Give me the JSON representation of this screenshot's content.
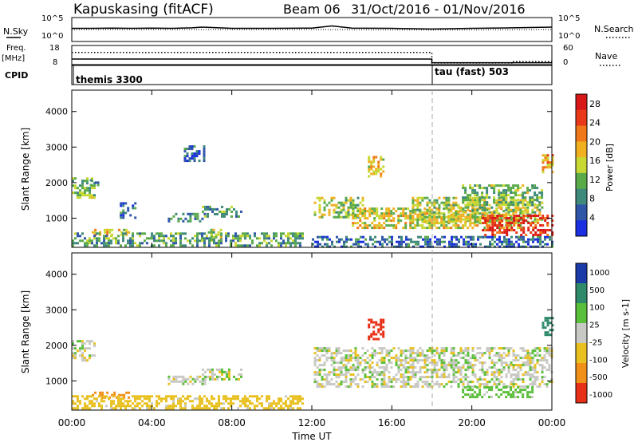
{
  "header": {
    "station": "Kapuskasing (fitACF)",
    "beam": "Beam 06",
    "dates": "31/Oct/2016 - 01/Nov/2016"
  },
  "left_labels": {
    "nsky": "N.Sky",
    "freq": "Freq.",
    "mhz": "[MHz]",
    "cpid": "CPID"
  },
  "right_labels": {
    "nsearch": "N.Search",
    "nave": "Nave"
  },
  "cpid_labels": [
    "themis 3300",
    "tau (fast) 503"
  ],
  "chart_data": [
    {
      "type": "line",
      "panel": "noise",
      "y_ticks_left": [
        "10^5",
        "10^0"
      ],
      "y_ticks_right": [
        "10^5",
        "10^0"
      ],
      "series": [
        {
          "name": "N.Sky",
          "x": [
            0,
            1,
            2,
            3,
            4,
            5,
            6,
            6.5,
            8,
            10,
            12,
            13,
            14,
            16,
            18,
            20,
            22,
            24
          ],
          "values": [
            0.55,
            0.55,
            0.56,
            0.55,
            0.56,
            0.55,
            0.57,
            0.6,
            0.55,
            0.55,
            0.56,
            0.65,
            0.56,
            0.55,
            0.52,
            0.55,
            0.57,
            0.6
          ]
        },
        {
          "name": "N.Search",
          "x": [
            0,
            6,
            12,
            18,
            24
          ],
          "values": [
            0.5,
            0.5,
            0.5,
            0.48,
            0.5
          ]
        }
      ]
    },
    {
      "type": "line",
      "panel": "frequency",
      "y_ticks_left": [
        "18",
        "8"
      ],
      "y_ticks_right": [
        "60",
        "0"
      ],
      "series": [
        {
          "name": "Freq.",
          "x": [
            0,
            18,
            18,
            24
          ],
          "values": [
            10.5,
            10.5,
            8.2,
            8.2
          ]
        },
        {
          "name": "Nave",
          "x": [
            0,
            18,
            18,
            22,
            22,
            24
          ],
          "values": [
            40,
            40,
            0,
            0,
            5,
            5
          ]
        }
      ]
    },
    {
      "type": "heatmap",
      "panel": "power",
      "xlabel": "",
      "ylabel": "Slant Range [km]",
      "x_ticks": [
        "00:00",
        "04:00",
        "08:00",
        "12:00",
        "16:00",
        "20:00",
        "00:00"
      ],
      "y_ticks": [
        "1000",
        "2000",
        "3000",
        "4000"
      ],
      "xlim": [
        0,
        24
      ],
      "ylim": [
        180,
        4600
      ],
      "colorbar": {
        "label": "Power [dB]",
        "ticks": [
          "4",
          "8",
          "12",
          "16",
          "20",
          "24",
          "28"
        ],
        "range": [
          0,
          30
        ]
      },
      "regions": [
        {
          "x": [
            0.0,
            1.1
          ],
          "y": [
            1600,
            2150
          ],
          "value": 12
        },
        {
          "x": [
            0.9,
            1.3
          ],
          "y": [
            1900,
            2100
          ],
          "value": 8
        },
        {
          "x": [
            1.0,
            2.8
          ],
          "y": [
            500,
            700
          ],
          "value": 18
        },
        {
          "x": [
            2.4,
            3.2
          ],
          "y": [
            1000,
            1450
          ],
          "value": 6
        },
        {
          "x": [
            0.0,
            11.5
          ],
          "y": [
            200,
            600
          ],
          "value": 10
        },
        {
          "x": [
            4.8,
            6.6
          ],
          "y": [
            900,
            1150
          ],
          "value": 8
        },
        {
          "x": [
            6.5,
            8.5
          ],
          "y": [
            1050,
            1350
          ],
          "value": 10
        },
        {
          "x": [
            5.6,
            6.6
          ],
          "y": [
            2600,
            3050
          ],
          "value": 6
        },
        {
          "x": [
            6.8,
            7.5
          ],
          "y": [
            400,
            700
          ],
          "value": 14
        },
        {
          "x": [
            12.0,
            24.0
          ],
          "y": [
            200,
            500
          ],
          "value": 6
        },
        {
          "x": [
            12.1,
            14.5
          ],
          "y": [
            1000,
            1600
          ],
          "value": 14
        },
        {
          "x": [
            14.0,
            22.5
          ],
          "y": [
            700,
            1300
          ],
          "value": 16
        },
        {
          "x": [
            17.0,
            23.5
          ],
          "y": [
            900,
            1600
          ],
          "value": 14
        },
        {
          "x": [
            19.5,
            23.5
          ],
          "y": [
            1400,
            1950
          ],
          "value": 12
        },
        {
          "x": [
            20.5,
            24.0
          ],
          "y": [
            500,
            1100
          ],
          "value": 26
        },
        {
          "x": [
            14.8,
            15.6
          ],
          "y": [
            2150,
            2750
          ],
          "value": 18
        },
        {
          "x": [
            23.5,
            24.0
          ],
          "y": [
            2300,
            2800
          ],
          "value": 20
        }
      ]
    },
    {
      "type": "heatmap",
      "panel": "velocity",
      "xlabel": "Time UT",
      "ylabel": "Slant Range [km]",
      "x_ticks": [
        "00:00",
        "04:00",
        "08:00",
        "12:00",
        "16:00",
        "20:00",
        "00:00"
      ],
      "y_ticks": [
        "1000",
        "2000",
        "3000",
        "4000"
      ],
      "xlim": [
        0,
        24
      ],
      "ylim": [
        180,
        4600
      ],
      "colorbar": {
        "label": "Velocity [m s-1]",
        "ticks": [
          "1000",
          "500",
          "100",
          "25",
          "-25",
          "-100",
          "-500",
          "-1000"
        ],
        "range": [
          -1000,
          1000
        ]
      },
      "regions": [
        {
          "x": [
            0.0,
            1.1
          ],
          "y": [
            1600,
            2150
          ],
          "value": 0
        },
        {
          "x": [
            1.0,
            2.8
          ],
          "y": [
            500,
            700
          ],
          "value": -300
        },
        {
          "x": [
            0.0,
            11.5
          ],
          "y": [
            200,
            600
          ],
          "value": -60
        },
        {
          "x": [
            4.8,
            6.6
          ],
          "y": [
            900,
            1150
          ],
          "value": 0
        },
        {
          "x": [
            6.5,
            8.5
          ],
          "y": [
            1050,
            1350
          ],
          "value": 0
        },
        {
          "x": [
            12.1,
            24.0
          ],
          "y": [
            850,
            1950
          ],
          "value": 0
        },
        {
          "x": [
            14.8,
            15.6
          ],
          "y": [
            2150,
            2750
          ],
          "value": -800
        },
        {
          "x": [
            19.5,
            23.0
          ],
          "y": [
            550,
            850
          ],
          "value": 60
        },
        {
          "x": [
            23.5,
            24.0
          ],
          "y": [
            2300,
            2800
          ],
          "value": 150
        }
      ]
    }
  ]
}
